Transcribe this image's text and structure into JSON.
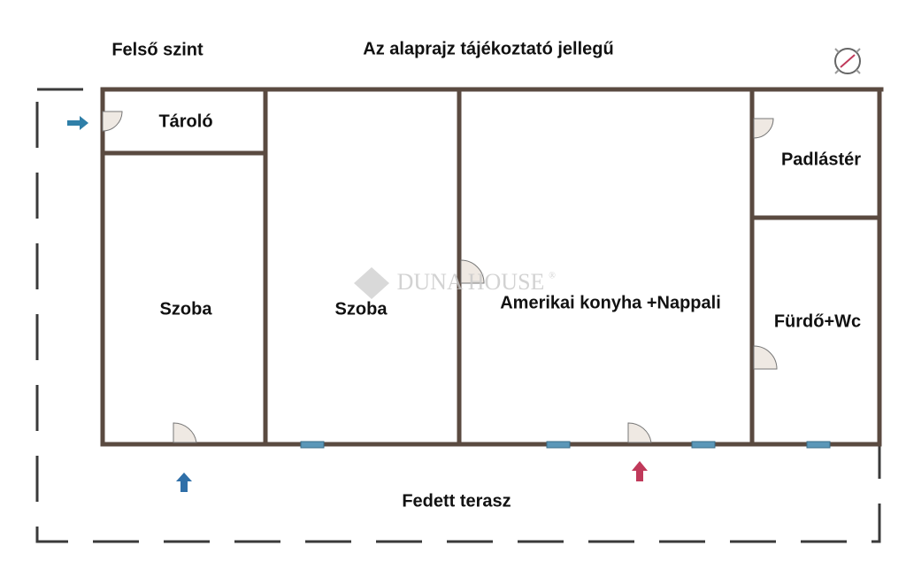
{
  "header": {
    "level": "Felső szint",
    "note": "Az alaprajz tájékoztató jellegű"
  },
  "rooms": [
    {
      "label": "Tároló"
    },
    {
      "label": "Szoba"
    },
    {
      "label": "Szoba"
    },
    {
      "label": "Amerikai konyha +Nappali"
    },
    {
      "label": "Padlástér"
    },
    {
      "label": "Fürdő+Wc"
    },
    {
      "label": "Fedett terasz"
    }
  ],
  "watermark": {
    "name": "DUNA HOUSE",
    "mark": "®"
  }
}
